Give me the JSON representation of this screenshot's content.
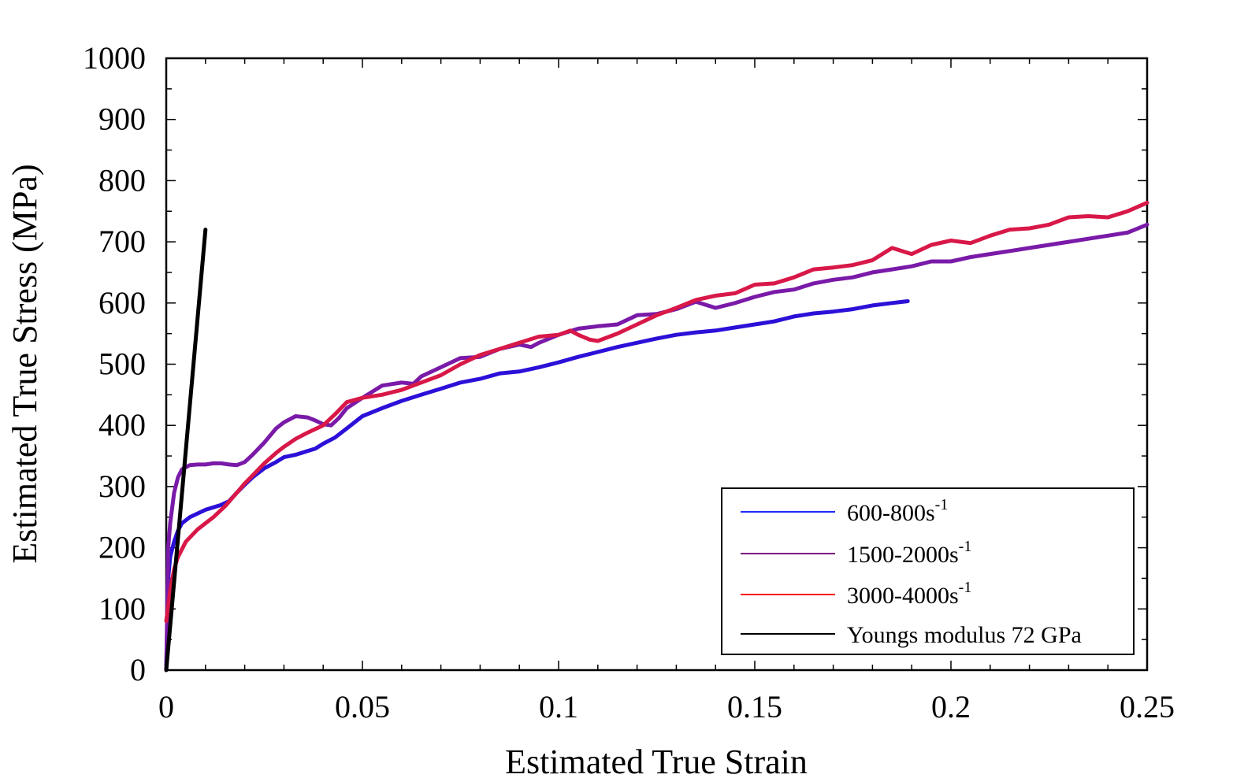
{
  "chart_data": {
    "type": "line",
    "title": "",
    "xlabel": "Estimated True Strain",
    "ylabel": "Estimated True Stress (MPa)",
    "xlim": [
      0,
      0.25
    ],
    "ylim": [
      0,
      1000
    ],
    "x_ticks": [
      0,
      0.05,
      0.1,
      0.15,
      0.2,
      0.25
    ],
    "x_tick_labels": [
      "0",
      "0.05",
      "0.1",
      "0.15",
      "0.2",
      "0.25"
    ],
    "y_ticks": [
      0,
      100,
      200,
      300,
      400,
      500,
      600,
      700,
      800,
      900,
      1000
    ],
    "y_tick_labels": [
      "0",
      "100",
      "200",
      "300",
      "400",
      "500",
      "600",
      "700",
      "800",
      "900",
      "1000"
    ],
    "grid": false,
    "legend_position": "bottom-right",
    "series": [
      {
        "name": "600-800s",
        "name_sup": "-1",
        "color": "#2b10d8",
        "legend_color": "#1f2bff",
        "points": [
          [
            0,
            0
          ],
          [
            0.0005,
            150
          ],
          [
            0.001,
            185
          ],
          [
            0.002,
            210
          ],
          [
            0.003,
            228
          ],
          [
            0.004,
            240
          ],
          [
            0.006,
            250
          ],
          [
            0.008,
            256
          ],
          [
            0.01,
            262
          ],
          [
            0.012,
            266
          ],
          [
            0.014,
            270
          ],
          [
            0.016,
            276
          ],
          [
            0.018,
            290
          ],
          [
            0.02,
            303
          ],
          [
            0.022,
            315
          ],
          [
            0.025,
            330
          ],
          [
            0.028,
            340
          ],
          [
            0.03,
            348
          ],
          [
            0.033,
            352
          ],
          [
            0.036,
            358
          ],
          [
            0.038,
            362
          ],
          [
            0.04,
            370
          ],
          [
            0.043,
            380
          ],
          [
            0.046,
            395
          ],
          [
            0.05,
            415
          ],
          [
            0.055,
            428
          ],
          [
            0.06,
            440
          ],
          [
            0.065,
            450
          ],
          [
            0.07,
            460
          ],
          [
            0.075,
            470
          ],
          [
            0.08,
            476
          ],
          [
            0.085,
            485
          ],
          [
            0.09,
            488
          ],
          [
            0.095,
            495
          ],
          [
            0.1,
            503
          ],
          [
            0.105,
            512
          ],
          [
            0.11,
            520
          ],
          [
            0.115,
            528
          ],
          [
            0.12,
            535
          ],
          [
            0.125,
            542
          ],
          [
            0.13,
            548
          ],
          [
            0.135,
            552
          ],
          [
            0.14,
            555
          ],
          [
            0.145,
            560
          ],
          [
            0.15,
            565
          ],
          [
            0.155,
            570
          ],
          [
            0.16,
            578
          ],
          [
            0.165,
            583
          ],
          [
            0.17,
            586
          ],
          [
            0.175,
            590
          ],
          [
            0.18,
            596
          ],
          [
            0.185,
            600
          ],
          [
            0.189,
            603
          ]
        ]
      },
      {
        "name": "1500-2000s",
        "name_sup": "-1",
        "color": "#7a1aa8",
        "legend_color": "#800080",
        "points": [
          [
            0,
            0
          ],
          [
            0.0005,
            200
          ],
          [
            0.001,
            240
          ],
          [
            0.002,
            290
          ],
          [
            0.003,
            315
          ],
          [
            0.004,
            328
          ],
          [
            0.006,
            335
          ],
          [
            0.008,
            336
          ],
          [
            0.01,
            336
          ],
          [
            0.012,
            338
          ],
          [
            0.014,
            338
          ],
          [
            0.016,
            336
          ],
          [
            0.018,
            335
          ],
          [
            0.02,
            340
          ],
          [
            0.022,
            352
          ],
          [
            0.025,
            372
          ],
          [
            0.028,
            395
          ],
          [
            0.03,
            405
          ],
          [
            0.033,
            415
          ],
          [
            0.036,
            413
          ],
          [
            0.038,
            408
          ],
          [
            0.04,
            402
          ],
          [
            0.042,
            400
          ],
          [
            0.044,
            412
          ],
          [
            0.046,
            428
          ],
          [
            0.05,
            445
          ],
          [
            0.055,
            465
          ],
          [
            0.06,
            470
          ],
          [
            0.063,
            468
          ],
          [
            0.065,
            480
          ],
          [
            0.07,
            495
          ],
          [
            0.075,
            510
          ],
          [
            0.08,
            512
          ],
          [
            0.085,
            525
          ],
          [
            0.09,
            532
          ],
          [
            0.093,
            528
          ],
          [
            0.095,
            535
          ],
          [
            0.1,
            548
          ],
          [
            0.105,
            558
          ],
          [
            0.11,
            562
          ],
          [
            0.115,
            565
          ],
          [
            0.12,
            580
          ],
          [
            0.125,
            582
          ],
          [
            0.13,
            590
          ],
          [
            0.135,
            602
          ],
          [
            0.14,
            592
          ],
          [
            0.145,
            600
          ],
          [
            0.15,
            610
          ],
          [
            0.155,
            618
          ],
          [
            0.16,
            622
          ],
          [
            0.165,
            632
          ],
          [
            0.17,
            638
          ],
          [
            0.175,
            642
          ],
          [
            0.18,
            650
          ],
          [
            0.185,
            655
          ],
          [
            0.19,
            660
          ],
          [
            0.195,
            668
          ],
          [
            0.2,
            668
          ],
          [
            0.205,
            675
          ],
          [
            0.21,
            680
          ],
          [
            0.215,
            685
          ],
          [
            0.22,
            690
          ],
          [
            0.225,
            695
          ],
          [
            0.23,
            700
          ],
          [
            0.235,
            705
          ],
          [
            0.24,
            710
          ],
          [
            0.245,
            715
          ],
          [
            0.25,
            728
          ]
        ]
      },
      {
        "name": "3000-4000s",
        "name_sup": "-1",
        "color": "#d81848",
        "legend_color": "#ff0000",
        "points": [
          [
            0,
            80
          ],
          [
            0.001,
            130
          ],
          [
            0.002,
            165
          ],
          [
            0.003,
            185
          ],
          [
            0.005,
            210
          ],
          [
            0.008,
            230
          ],
          [
            0.01,
            240
          ],
          [
            0.012,
            250
          ],
          [
            0.015,
            268
          ],
          [
            0.018,
            290
          ],
          [
            0.02,
            305
          ],
          [
            0.022,
            318
          ],
          [
            0.025,
            338
          ],
          [
            0.028,
            355
          ],
          [
            0.03,
            365
          ],
          [
            0.033,
            378
          ],
          [
            0.036,
            388
          ],
          [
            0.04,
            400
          ],
          [
            0.043,
            418
          ],
          [
            0.046,
            438
          ],
          [
            0.05,
            445
          ],
          [
            0.055,
            450
          ],
          [
            0.06,
            458
          ],
          [
            0.065,
            470
          ],
          [
            0.07,
            482
          ],
          [
            0.075,
            500
          ],
          [
            0.08,
            515
          ],
          [
            0.085,
            525
          ],
          [
            0.09,
            535
          ],
          [
            0.095,
            545
          ],
          [
            0.1,
            548
          ],
          [
            0.103,
            555
          ],
          [
            0.105,
            548
          ],
          [
            0.108,
            540
          ],
          [
            0.11,
            538
          ],
          [
            0.115,
            550
          ],
          [
            0.12,
            565
          ],
          [
            0.125,
            580
          ],
          [
            0.13,
            592
          ],
          [
            0.135,
            605
          ],
          [
            0.14,
            612
          ],
          [
            0.145,
            616
          ],
          [
            0.15,
            630
          ],
          [
            0.155,
            632
          ],
          [
            0.16,
            642
          ],
          [
            0.165,
            655
          ],
          [
            0.17,
            658
          ],
          [
            0.175,
            662
          ],
          [
            0.18,
            670
          ],
          [
            0.185,
            690
          ],
          [
            0.19,
            680
          ],
          [
            0.195,
            695
          ],
          [
            0.2,
            702
          ],
          [
            0.205,
            698
          ],
          [
            0.21,
            710
          ],
          [
            0.215,
            720
          ],
          [
            0.22,
            722
          ],
          [
            0.225,
            728
          ],
          [
            0.23,
            740
          ],
          [
            0.235,
            742
          ],
          [
            0.24,
            740
          ],
          [
            0.245,
            750
          ],
          [
            0.25,
            764
          ]
        ]
      },
      {
        "name": "Youngs modulus 72 GPa",
        "name_sup": "",
        "color": "#000000",
        "legend_color": "#000000",
        "points": [
          [
            0,
            0
          ],
          [
            0.01,
            720
          ]
        ]
      }
    ]
  }
}
